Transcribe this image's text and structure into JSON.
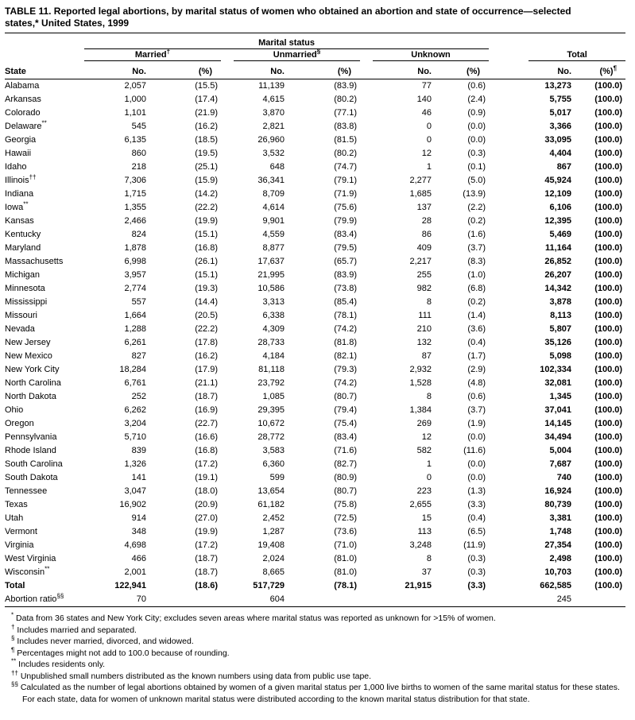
{
  "title": "TABLE 11. Reported legal abortions, by marital status of women who obtained an abortion and state of occurrence—selected states,* United States, 1999",
  "table": {
    "marital_status_header": "Marital status",
    "state_header": "State",
    "groups": [
      {
        "label": "Married",
        "marker": "†"
      },
      {
        "label": "Unmarried",
        "marker": "§"
      },
      {
        "label": "Unknown",
        "marker": ""
      },
      {
        "label": "Total",
        "marker": ""
      }
    ],
    "subheaders": {
      "no": "No.",
      "pct": "(%)",
      "pct_total_marker": "¶"
    },
    "rows": [
      {
        "state": "Alabama",
        "cells": [
          "2,057",
          "(15.5)",
          "11,139",
          "(83.9)",
          "77",
          "(0.6)",
          "13,273",
          "(100.0)"
        ]
      },
      {
        "state": "Arkansas",
        "cells": [
          "1,000",
          "(17.4)",
          "4,615",
          "(80.2)",
          "140",
          "(2.4)",
          "5,755",
          "(100.0)"
        ]
      },
      {
        "state": "Colorado",
        "cells": [
          "1,101",
          "(21.9)",
          "3,870",
          "(77.1)",
          "46",
          "(0.9)",
          "5,017",
          "(100.0)"
        ]
      },
      {
        "state": "Delaware",
        "marker": "**",
        "cells": [
          "545",
          "(16.2)",
          "2,821",
          "(83.8)",
          "0",
          "(0.0)",
          "3,366",
          "(100.0)"
        ]
      },
      {
        "state": "Georgia",
        "cells": [
          "6,135",
          "(18.5)",
          "26,960",
          "(81.5)",
          "0",
          "(0.0)",
          "33,095",
          "(100.0)"
        ]
      },
      {
        "state": "Hawaii",
        "cells": [
          "860",
          "(19.5)",
          "3,532",
          "(80.2)",
          "12",
          "(0.3)",
          "4,404",
          "(100.0)"
        ]
      },
      {
        "state": "Idaho",
        "cells": [
          "218",
          "(25.1)",
          "648",
          "(74.7)",
          "1",
          "(0.1)",
          "867",
          "(100.0)"
        ]
      },
      {
        "state": "Illinois",
        "marker": "††",
        "cells": [
          "7,306",
          "(15.9)",
          "36,341",
          "(79.1)",
          "2,277",
          "(5.0)",
          "45,924",
          "(100.0)"
        ]
      },
      {
        "state": "Indiana",
        "cells": [
          "1,715",
          "(14.2)",
          "8,709",
          "(71.9)",
          "1,685",
          "(13.9)",
          "12,109",
          "(100.0)"
        ]
      },
      {
        "state": "Iowa",
        "marker": "**",
        "cells": [
          "1,355",
          "(22.2)",
          "4,614",
          "(75.6)",
          "137",
          "(2.2)",
          "6,106",
          "(100.0)"
        ]
      },
      {
        "state": "Kansas",
        "cells": [
          "2,466",
          "(19.9)",
          "9,901",
          "(79.9)",
          "28",
          "(0.2)",
          "12,395",
          "(100.0)"
        ]
      },
      {
        "state": "Kentucky",
        "cells": [
          "824",
          "(15.1)",
          "4,559",
          "(83.4)",
          "86",
          "(1.6)",
          "5,469",
          "(100.0)"
        ]
      },
      {
        "state": "Maryland",
        "cells": [
          "1,878",
          "(16.8)",
          "8,877",
          "(79.5)",
          "409",
          "(3.7)",
          "11,164",
          "(100.0)"
        ]
      },
      {
        "state": "Massachusetts",
        "cells": [
          "6,998",
          "(26.1)",
          "17,637",
          "(65.7)",
          "2,217",
          "(8.3)",
          "26,852",
          "(100.0)"
        ]
      },
      {
        "state": "Michigan",
        "cells": [
          "3,957",
          "(15.1)",
          "21,995",
          "(83.9)",
          "255",
          "(1.0)",
          "26,207",
          "(100.0)"
        ]
      },
      {
        "state": "Minnesota",
        "cells": [
          "2,774",
          "(19.3)",
          "10,586",
          "(73.8)",
          "982",
          "(6.8)",
          "14,342",
          "(100.0)"
        ]
      },
      {
        "state": "Mississippi",
        "cells": [
          "557",
          "(14.4)",
          "3,313",
          "(85.4)",
          "8",
          "(0.2)",
          "3,878",
          "(100.0)"
        ]
      },
      {
        "state": "Missouri",
        "cells": [
          "1,664",
          "(20.5)",
          "6,338",
          "(78.1)",
          "111",
          "(1.4)",
          "8,113",
          "(100.0)"
        ]
      },
      {
        "state": "Nevada",
        "cells": [
          "1,288",
          "(22.2)",
          "4,309",
          "(74.2)",
          "210",
          "(3.6)",
          "5,807",
          "(100.0)"
        ]
      },
      {
        "state": "New Jersey",
        "cells": [
          "6,261",
          "(17.8)",
          "28,733",
          "(81.8)",
          "132",
          "(0.4)",
          "35,126",
          "(100.0)"
        ]
      },
      {
        "state": "New Mexico",
        "cells": [
          "827",
          "(16.2)",
          "4,184",
          "(82.1)",
          "87",
          "(1.7)",
          "5,098",
          "(100.0)"
        ]
      },
      {
        "state": "New York City",
        "cells": [
          "18,284",
          "(17.9)",
          "81,118",
          "(79.3)",
          "2,932",
          "(2.9)",
          "102,334",
          "(100.0)"
        ]
      },
      {
        "state": "North Carolina",
        "cells": [
          "6,761",
          "(21.1)",
          "23,792",
          "(74.2)",
          "1,528",
          "(4.8)",
          "32,081",
          "(100.0)"
        ]
      },
      {
        "state": "North Dakota",
        "cells": [
          "252",
          "(18.7)",
          "1,085",
          "(80.7)",
          "8",
          "(0.6)",
          "1,345",
          "(100.0)"
        ]
      },
      {
        "state": "Ohio",
        "cells": [
          "6,262",
          "(16.9)",
          "29,395",
          "(79.4)",
          "1,384",
          "(3.7)",
          "37,041",
          "(100.0)"
        ]
      },
      {
        "state": "Oregon",
        "cells": [
          "3,204",
          "(22.7)",
          "10,672",
          "(75.4)",
          "269",
          "(1.9)",
          "14,145",
          "(100.0)"
        ]
      },
      {
        "state": "Pennsylvania",
        "cells": [
          "5,710",
          "(16.6)",
          "28,772",
          "(83.4)",
          "12",
          "(0.0)",
          "34,494",
          "(100.0)"
        ]
      },
      {
        "state": "Rhode Island",
        "cells": [
          "839",
          "(16.8)",
          "3,583",
          "(71.6)",
          "582",
          "(11.6)",
          "5,004",
          "(100.0)"
        ]
      },
      {
        "state": "South Carolina",
        "cells": [
          "1,326",
          "(17.2)",
          "6,360",
          "(82.7)",
          "1",
          "(0.0)",
          "7,687",
          "(100.0)"
        ]
      },
      {
        "state": "South Dakota",
        "cells": [
          "141",
          "(19.1)",
          "599",
          "(80.9)",
          "0",
          "(0.0)",
          "740",
          "(100.0)"
        ]
      },
      {
        "state": "Tennessee",
        "cells": [
          "3,047",
          "(18.0)",
          "13,654",
          "(80.7)",
          "223",
          "(1.3)",
          "16,924",
          "(100.0)"
        ]
      },
      {
        "state": "Texas",
        "cells": [
          "16,902",
          "(20.9)",
          "61,182",
          "(75.8)",
          "2,655",
          "(3.3)",
          "80,739",
          "(100.0)"
        ]
      },
      {
        "state": "Utah",
        "cells": [
          "914",
          "(27.0)",
          "2,452",
          "(72.5)",
          "15",
          "(0.4)",
          "3,381",
          "(100.0)"
        ]
      },
      {
        "state": "Vermont",
        "cells": [
          "348",
          "(19.9)",
          "1,287",
          "(73.6)",
          "113",
          "(6.5)",
          "1,748",
          "(100.0)"
        ]
      },
      {
        "state": "Virginia",
        "cells": [
          "4,698",
          "(17.2)",
          "19,408",
          "(71.0)",
          "3,248",
          "(11.9)",
          "27,354",
          "(100.0)"
        ]
      },
      {
        "state": "West Virginia",
        "cells": [
          "466",
          "(18.7)",
          "2,024",
          "(81.0)",
          "8",
          "(0.3)",
          "2,498",
          "(100.0)"
        ]
      },
      {
        "state": "Wisconsin",
        "marker": "**",
        "cells": [
          "2,001",
          "(18.7)",
          "8,665",
          "(81.0)",
          "37",
          "(0.3)",
          "10,703",
          "(100.0)"
        ]
      },
      {
        "state": "Total",
        "total": true,
        "cells": [
          "122,941",
          "(18.6)",
          "517,729",
          "(78.1)",
          "21,915",
          "(3.3)",
          "662,585",
          "(100.0)"
        ]
      },
      {
        "state": "Abortion ratio",
        "marker": "§§",
        "ratio": true,
        "cells": [
          "70",
          "",
          "604",
          "",
          "",
          "",
          "245",
          ""
        ]
      }
    ]
  },
  "footnotes": [
    {
      "marker": "*",
      "text": "Data from 36 states and New York City; excludes seven areas where marital status was reported as unknown for >15% of women."
    },
    {
      "marker": "†",
      "text": "Includes married and separated."
    },
    {
      "marker": "§",
      "text": "Includes never married, divorced, and widowed."
    },
    {
      "marker": "¶",
      "text": "Percentages might not add to 100.0 because of rounding."
    },
    {
      "marker": "**",
      "text": "Includes residents only."
    },
    {
      "marker": "††",
      "text": "Unpublished small numbers distributed as the known numbers using data from public use tape."
    },
    {
      "marker": "§§",
      "text": "Calculated as the number of legal abortions obtained by women of a given marital status per 1,000 live births to women of the same marital status for these states. For each state, data for women of unknown marital status were distributed according to the known marital status distribution for that state."
    }
  ]
}
